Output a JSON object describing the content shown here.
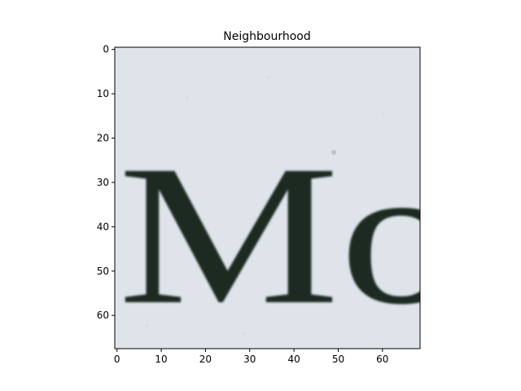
{
  "chart_data": {
    "type": "image",
    "title": "Neighbourhood",
    "xlabel": "",
    "ylabel": "",
    "xlim": [
      -0.5,
      68.5
    ],
    "ylim": [
      67.5,
      -0.5
    ],
    "xticks": [
      0,
      10,
      20,
      30,
      40,
      50,
      60
    ],
    "yticks": [
      0,
      10,
      20,
      30,
      40,
      50,
      60
    ],
    "image_text": "Mo",
    "colors": {
      "background": "#dfe3ea",
      "ink": "#1f2a22",
      "axis": "#000000"
    }
  }
}
